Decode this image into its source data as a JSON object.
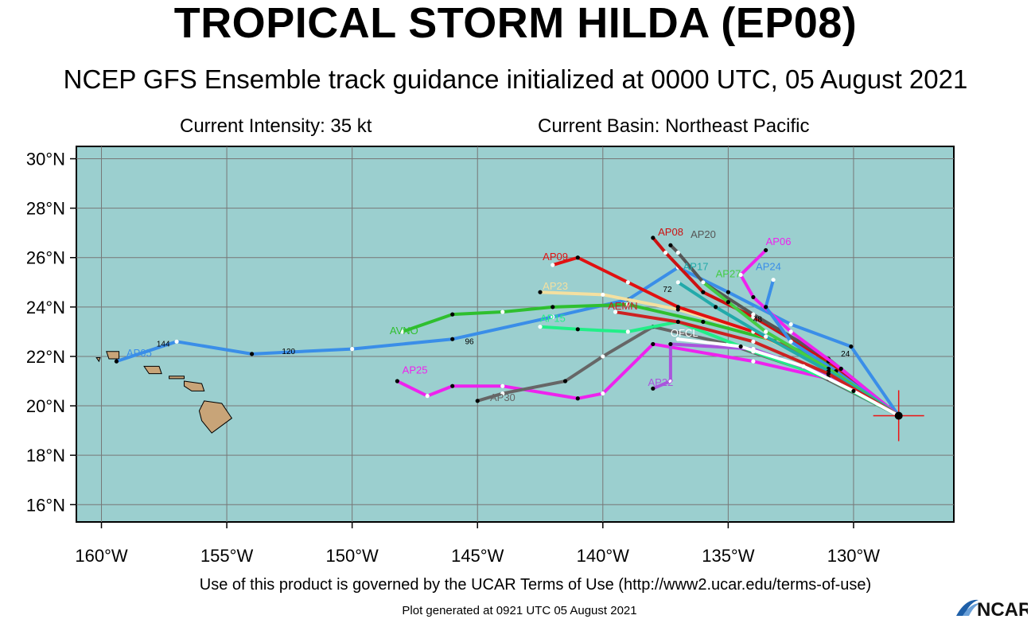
{
  "header": {
    "title": "TROPICAL STORM HILDA (EP08)",
    "subtitle": "NCEP GFS Ensemble track guidance initialized at 0000 UTC, 05 August 2021",
    "intensity": "Current Intensity: 35 kt",
    "basin": "Current Basin: Northeast Pacific"
  },
  "map": {
    "lon_range": [
      -161,
      -126
    ],
    "lat_range": [
      15.3,
      30.5
    ],
    "grid": true,
    "ocean_color": "#9bcfcf",
    "land_color": "#c8a478",
    "x_ticks": [
      {
        "lon": -160,
        "label": "160°W"
      },
      {
        "lon": -155,
        "label": "155°W"
      },
      {
        "lon": -150,
        "label": "150°W"
      },
      {
        "lon": -145,
        "label": "145°W"
      },
      {
        "lon": -140,
        "label": "140°W"
      },
      {
        "lon": -135,
        "label": "135°W"
      },
      {
        "lon": -130,
        "label": "130°W"
      }
    ],
    "y_ticks": [
      {
        "lat": 30,
        "label": "30°N"
      },
      {
        "lat": 28,
        "label": "28°N"
      },
      {
        "lat": 26,
        "label": "26°N"
      },
      {
        "lat": 24,
        "label": "24°N"
      },
      {
        "lat": 22,
        "label": "22°N"
      },
      {
        "lat": 20,
        "label": "20°N"
      },
      {
        "lat": 18,
        "label": "18°N"
      },
      {
        "lat": 16,
        "label": "16°N"
      }
    ],
    "current_position": {
      "lon": -128.2,
      "lat": 19.6
    }
  },
  "chart_data": {
    "type": "line",
    "xlabel": "",
    "ylabel": "",
    "xlim": [
      -161,
      -126
    ],
    "ylim": [
      15.3,
      30.5
    ],
    "series": [
      {
        "name": "AP05",
        "color": "#3a8ee8",
        "points": [
          [
            -128.2,
            19.6
          ],
          [
            -130.1,
            22.4
          ],
          [
            -132.5,
            23.3
          ],
          [
            -135,
            24.6
          ],
          [
            -137,
            25.6
          ],
          [
            -139,
            24.3
          ],
          [
            -142,
            23.6
          ],
          [
            -146,
            22.7
          ],
          [
            -150,
            22.3
          ],
          [
            -154,
            22.1
          ],
          [
            -157,
            22.6
          ],
          [
            -159.4,
            21.8
          ]
        ],
        "label_pos": [
          -159.0,
          22.0
        ]
      },
      {
        "name": "AVNO",
        "color": "#2fbf2f",
        "points": [
          [
            -128.2,
            19.6
          ],
          [
            -130.5,
            21.5
          ],
          [
            -133,
            22.6
          ],
          [
            -136,
            23.4
          ],
          [
            -139,
            24.1
          ],
          [
            -142,
            24
          ],
          [
            -144,
            23.8
          ],
          [
            -146,
            23.7
          ],
          [
            -148,
            23
          ]
        ],
        "label_pos": [
          -148.5,
          22.9
        ]
      },
      {
        "name": "AP25",
        "color": "#ee22ee",
        "points": [
          [
            -128.2,
            19.6
          ],
          [
            -131,
            21.1
          ],
          [
            -134,
            21.8
          ],
          [
            -138,
            22.5
          ],
          [
            -140,
            20.5
          ],
          [
            -141,
            20.3
          ],
          [
            -144,
            20.8
          ],
          [
            -146,
            20.8
          ],
          [
            -147,
            20.4
          ],
          [
            -148.2,
            21
          ]
        ],
        "label_pos": [
          -148.0,
          21.3
        ]
      },
      {
        "name": "AP30",
        "color": "#666666",
        "points": [
          [
            -128.2,
            19.6
          ],
          [
            -131.5,
            21.3
          ],
          [
            -135,
            22.5
          ],
          [
            -138,
            23.2
          ],
          [
            -140,
            22
          ],
          [
            -141.5,
            21
          ],
          [
            -144,
            20.5
          ],
          [
            -145,
            20.2
          ]
        ],
        "label_pos": [
          -144.5,
          20.2
        ]
      },
      {
        "name": "AP15",
        "color": "#22ee88",
        "points": [
          [
            -128.2,
            19.6
          ],
          [
            -131,
            21.1
          ],
          [
            -134,
            22.2
          ],
          [
            -137,
            23.4
          ],
          [
            -139,
            23
          ],
          [
            -141,
            23.1
          ],
          [
            -142.5,
            23.2
          ]
        ],
        "label_pos": [
          -142.5,
          23.4
        ]
      },
      {
        "name": "AP23",
        "color": "#f4e0a0",
        "points": [
          [
            -128.2,
            19.6
          ],
          [
            -131,
            21.5
          ],
          [
            -134,
            23
          ],
          [
            -137,
            23.9
          ],
          [
            -140,
            24.5
          ],
          [
            -142.5,
            24.6
          ]
        ],
        "label_pos": [
          -142.4,
          24.7
        ]
      },
      {
        "name": "AP09",
        "color": "#e11111",
        "points": [
          [
            -128.2,
            19.6
          ],
          [
            -131,
            21.6
          ],
          [
            -134,
            23
          ],
          [
            -137,
            24
          ],
          [
            -139,
            25
          ],
          [
            -141,
            26
          ],
          [
            -142,
            25.7
          ]
        ],
        "label_pos": [
          -142.4,
          25.9
        ]
      },
      {
        "name": "AP08",
        "color": "#cc1111",
        "points": [
          [
            -128.2,
            19.6
          ],
          [
            -131,
            21.8
          ],
          [
            -134,
            23.6
          ],
          [
            -136,
            24.6
          ],
          [
            -137.5,
            26.2
          ],
          [
            -138,
            26.8
          ]
        ],
        "label_pos": [
          -137.8,
          26.9
        ]
      },
      {
        "name": "AP20",
        "color": "#555555",
        "points": [
          [
            -128.2,
            19.6
          ],
          [
            -131,
            21.9
          ],
          [
            -134,
            23.7
          ],
          [
            -136,
            25
          ],
          [
            -137,
            26.2
          ],
          [
            -137.3,
            26.5
          ]
        ],
        "label_pos": [
          -136.5,
          26.8
        ]
      },
      {
        "name": "AP06",
        "color": "#ee22ee",
        "points": [
          [
            -128.2,
            19.6
          ],
          [
            -130.5,
            21.5
          ],
          [
            -132.5,
            23
          ],
          [
            -134,
            24.4
          ],
          [
            -134.5,
            25.3
          ],
          [
            -133.5,
            26.3
          ]
        ],
        "label_pos": [
          -133.5,
          26.5
        ]
      },
      {
        "name": "AP24",
        "color": "#3a8ee8",
        "points": [
          [
            -128.2,
            19.6
          ],
          [
            -130.7,
            21.4
          ],
          [
            -132.5,
            22.6
          ],
          [
            -133.5,
            24
          ],
          [
            -133.2,
            25.1
          ]
        ],
        "label_pos": [
          -133.9,
          25.5
        ]
      },
      {
        "name": "AP22",
        "color": "#aa55dd",
        "points": [
          [
            -128.2,
            19.6
          ],
          [
            -131,
            21.2
          ],
          [
            -134,
            22.3
          ],
          [
            -137.3,
            22.5
          ],
          [
            -137.3,
            21
          ],
          [
            -138,
            20.7
          ]
        ],
        "label_pos": [
          -138.2,
          20.8
        ]
      },
      {
        "name": "AP27",
        "color": "#44cc44",
        "points": [
          [
            -128.2,
            19.6
          ],
          [
            -131,
            21.5
          ],
          [
            -133.5,
            23
          ],
          [
            -135,
            24.2
          ],
          [
            -136,
            25
          ]
        ],
        "label_pos": [
          -135.5,
          25.2
        ]
      },
      {
        "name": "AP17",
        "color": "#22aaaa",
        "points": [
          [
            -128.2,
            19.6
          ],
          [
            -131,
            21.4
          ],
          [
            -133.5,
            22.8
          ],
          [
            -135.5,
            24
          ],
          [
            -137,
            25
          ]
        ],
        "label_pos": [
          -136.8,
          25.5
        ]
      },
      {
        "name": "AEMN",
        "color": "#cc2222",
        "points": [
          [
            -128.2,
            19.6
          ],
          [
            -131,
            21.3
          ],
          [
            -134,
            22.6
          ],
          [
            -137,
            23.4
          ],
          [
            -139.5,
            23.8
          ]
        ],
        "label_pos": [
          -139.8,
          23.9
        ]
      },
      {
        "name": "OFCL",
        "color": "#ffffff",
        "points": [
          [
            -128.2,
            19.6
          ],
          [
            -130,
            20.6
          ],
          [
            -132,
            21.6
          ],
          [
            -134.5,
            22.4
          ],
          [
            -137,
            22.7
          ]
        ],
        "label_pos": [
          -137.3,
          22.8
        ]
      }
    ],
    "forecast_hour_labels": [
      "24",
      "48",
      "72",
      "96",
      "120",
      "144"
    ]
  },
  "footer": {
    "terms": "Use of this product is governed by the UCAR Terms of Use (http://www2.ucar.edu/terms-of-use)",
    "generated": "Plot generated at 0921 UTC   05 August 2021",
    "logo_text": "NCAR"
  }
}
